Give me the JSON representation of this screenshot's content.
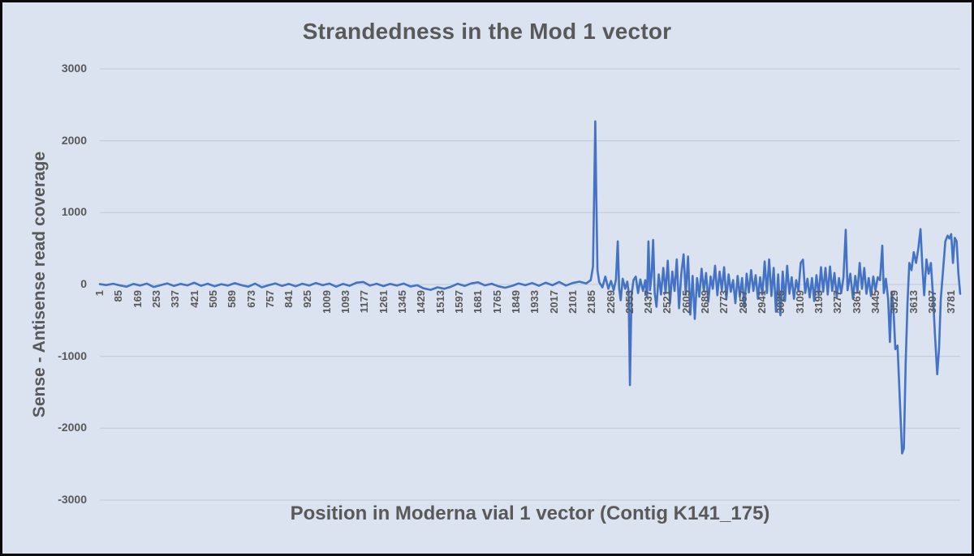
{
  "chart": {
    "title": "Strandedness in the Mod 1 vector",
    "colors": {
      "background": "#dbe2f0",
      "line": "#4472C4",
      "gridline": "#c7cfdf",
      "text": "#595959",
      "border": "#0a0a0a"
    }
  },
  "chart_data": {
    "type": "line",
    "title": "Strandedness in the Mod 1 vector",
    "xlabel": "Position in Moderna vial 1 vector (Contig K141_175)",
    "ylabel": "Sense - Antisense read coverage",
    "ylim": [
      -3000,
      3000
    ],
    "y_ticks": [
      3000,
      2000,
      1000,
      0,
      -1000,
      -2000,
      -3000
    ],
    "x_range": [
      1,
      3820
    ],
    "x_tick_labels": [
      1,
      85,
      169,
      253,
      337,
      421,
      505,
      589,
      673,
      757,
      841,
      925,
      1009,
      1093,
      1177,
      1261,
      1345,
      1429,
      1513,
      1597,
      1681,
      1765,
      1849,
      1933,
      2017,
      2101,
      2185,
      2269,
      2353,
      2437,
      2521,
      2605,
      2689,
      2773,
      2857,
      2941,
      3025,
      3109,
      3193,
      3277,
      3361,
      3445,
      3529,
      3613,
      3697,
      3781
    ],
    "grid": true,
    "legend": "none",
    "series_name": "Sense - Antisense read coverage",
    "points": [
      [
        1,
        5
      ],
      [
        30,
        -8
      ],
      [
        60,
        10
      ],
      [
        90,
        -12
      ],
      [
        120,
        -30
      ],
      [
        150,
        8
      ],
      [
        180,
        -15
      ],
      [
        210,
        12
      ],
      [
        240,
        -35
      ],
      [
        270,
        -10
      ],
      [
        300,
        15
      ],
      [
        330,
        -20
      ],
      [
        360,
        8
      ],
      [
        390,
        -12
      ],
      [
        420,
        25
      ],
      [
        450,
        -18
      ],
      [
        480,
        10
      ],
      [
        510,
        -25
      ],
      [
        540,
        5
      ],
      [
        570,
        -15
      ],
      [
        600,
        18
      ],
      [
        630,
        -10
      ],
      [
        660,
        -30
      ],
      [
        690,
        12
      ],
      [
        720,
        -40
      ],
      [
        750,
        -10
      ],
      [
        780,
        15
      ],
      [
        810,
        -20
      ],
      [
        840,
        8
      ],
      [
        870,
        -25
      ],
      [
        900,
        10
      ],
      [
        930,
        -15
      ],
      [
        960,
        20
      ],
      [
        990,
        -10
      ],
      [
        1020,
        12
      ],
      [
        1050,
        -30
      ],
      [
        1080,
        8
      ],
      [
        1110,
        -18
      ],
      [
        1140,
        25
      ],
      [
        1170,
        35
      ],
      [
        1200,
        -15
      ],
      [
        1230,
        10
      ],
      [
        1260,
        -22
      ],
      [
        1290,
        8
      ],
      [
        1320,
        -15
      ],
      [
        1350,
        12
      ],
      [
        1380,
        -28
      ],
      [
        1410,
        -10
      ],
      [
        1440,
        -55
      ],
      [
        1470,
        -75
      ],
      [
        1500,
        -40
      ],
      [
        1530,
        -60
      ],
      [
        1560,
        -30
      ],
      [
        1590,
        10
      ],
      [
        1620,
        -20
      ],
      [
        1650,
        15
      ],
      [
        1680,
        30
      ],
      [
        1710,
        -12
      ],
      [
        1740,
        10
      ],
      [
        1770,
        -25
      ],
      [
        1800,
        -45
      ],
      [
        1830,
        -20
      ],
      [
        1860,
        15
      ],
      [
        1890,
        -10
      ],
      [
        1920,
        20
      ],
      [
        1950,
        -18
      ],
      [
        1980,
        25
      ],
      [
        2010,
        -10
      ],
      [
        2040,
        35
      ],
      [
        2070,
        -15
      ],
      [
        2100,
        20
      ],
      [
        2130,
        40
      ],
      [
        2160,
        15
      ],
      [
        2180,
        60
      ],
      [
        2190,
        250
      ],
      [
        2196,
        1400
      ],
      [
        2200,
        2270
      ],
      [
        2205,
        1200
      ],
      [
        2210,
        200
      ],
      [
        2218,
        30
      ],
      [
        2232,
        -40
      ],
      [
        2245,
        110
      ],
      [
        2258,
        -60
      ],
      [
        2270,
        50
      ],
      [
        2282,
        -80
      ],
      [
        2292,
        70
      ],
      [
        2300,
        600
      ],
      [
        2306,
        -50
      ],
      [
        2313,
        -220
      ],
      [
        2322,
        80
      ],
      [
        2333,
        -60
      ],
      [
        2342,
        40
      ],
      [
        2348,
        -90
      ],
      [
        2354,
        -1400
      ],
      [
        2361,
        -150
      ],
      [
        2370,
        60
      ],
      [
        2380,
        110
      ],
      [
        2390,
        -120
      ],
      [
        2400,
        70
      ],
      [
        2412,
        -90
      ],
      [
        2422,
        60
      ],
      [
        2430,
        -180
      ],
      [
        2436,
        600
      ],
      [
        2443,
        -80
      ],
      [
        2450,
        120
      ],
      [
        2457,
        620
      ],
      [
        2464,
        -120
      ],
      [
        2472,
        -310
      ],
      [
        2482,
        140
      ],
      [
        2492,
        -140
      ],
      [
        2502,
        230
      ],
      [
        2512,
        -120
      ],
      [
        2522,
        330
      ],
      [
        2532,
        -260
      ],
      [
        2542,
        180
      ],
      [
        2552,
        -90
      ],
      [
        2562,
        350
      ],
      [
        2572,
        -330
      ],
      [
        2582,
        150
      ],
      [
        2592,
        420
      ],
      [
        2602,
        -140
      ],
      [
        2612,
        390
      ],
      [
        2622,
        -420
      ],
      [
        2632,
        120
      ],
      [
        2642,
        -480
      ],
      [
        2652,
        90
      ],
      [
        2662,
        -170
      ],
      [
        2672,
        220
      ],
      [
        2682,
        -90
      ],
      [
        2692,
        160
      ],
      [
        2702,
        -240
      ],
      [
        2712,
        110
      ],
      [
        2722,
        -60
      ],
      [
        2732,
        260
      ],
      [
        2742,
        -150
      ],
      [
        2752,
        180
      ],
      [
        2762,
        -80
      ],
      [
        2772,
        240
      ],
      [
        2782,
        -200
      ],
      [
        2792,
        140
      ],
      [
        2802,
        -100
      ],
      [
        2812,
        60
      ],
      [
        2822,
        -260
      ],
      [
        2832,
        120
      ],
      [
        2842,
        -170
      ],
      [
        2852,
        90
      ],
      [
        2862,
        -320
      ],
      [
        2872,
        150
      ],
      [
        2882,
        -110
      ],
      [
        2892,
        200
      ],
      [
        2902,
        -90
      ],
      [
        2912,
        130
      ],
      [
        2922,
        -200
      ],
      [
        2932,
        100
      ],
      [
        2942,
        -140
      ],
      [
        2952,
        320
      ],
      [
        2962,
        -120
      ],
      [
        2972,
        350
      ],
      [
        2982,
        -160
      ],
      [
        2992,
        230
      ],
      [
        3002,
        -380
      ],
      [
        3012,
        140
      ],
      [
        3022,
        -430
      ],
      [
        3032,
        180
      ],
      [
        3042,
        -230
      ],
      [
        3052,
        260
      ],
      [
        3062,
        -130
      ],
      [
        3072,
        100
      ],
      [
        3082,
        -200
      ],
      [
        3092,
        60
      ],
      [
        3102,
        -90
      ],
      [
        3112,
        300
      ],
      [
        3122,
        345
      ],
      [
        3132,
        -120
      ],
      [
        3142,
        80
      ],
      [
        3152,
        -180
      ],
      [
        3162,
        90
      ],
      [
        3172,
        -230
      ],
      [
        3182,
        130
      ],
      [
        3192,
        -150
      ],
      [
        3202,
        240
      ],
      [
        3212,
        -100
      ],
      [
        3222,
        230
      ],
      [
        3232,
        -140
      ],
      [
        3242,
        250
      ],
      [
        3252,
        -90
      ],
      [
        3262,
        160
      ],
      [
        3272,
        -180
      ],
      [
        3282,
        90
      ],
      [
        3292,
        -120
      ],
      [
        3302,
        100
      ],
      [
        3312,
        760
      ],
      [
        3320,
        -80
      ],
      [
        3332,
        150
      ],
      [
        3344,
        -200
      ],
      [
        3354,
        120
      ],
      [
        3364,
        -100
      ],
      [
        3374,
        300
      ],
      [
        3384,
        -60
      ],
      [
        3394,
        230
      ],
      [
        3404,
        -130
      ],
      [
        3414,
        90
      ],
      [
        3424,
        -160
      ],
      [
        3434,
        110
      ],
      [
        3444,
        -80
      ],
      [
        3454,
        100
      ],
      [
        3464,
        60
      ],
      [
        3474,
        540
      ],
      [
        3481,
        -120
      ],
      [
        3490,
        80
      ],
      [
        3500,
        -200
      ],
      [
        3508,
        -800
      ],
      [
        3516,
        -100
      ],
      [
        3524,
        -350
      ],
      [
        3532,
        -900
      ],
      [
        3542,
        -850
      ],
      [
        3552,
        -1600
      ],
      [
        3562,
        -2350
      ],
      [
        3570,
        -2280
      ],
      [
        3578,
        -1100
      ],
      [
        3586,
        -250
      ],
      [
        3594,
        300
      ],
      [
        3604,
        200
      ],
      [
        3614,
        450
      ],
      [
        3624,
        300
      ],
      [
        3634,
        500
      ],
      [
        3644,
        770
      ],
      [
        3652,
        250
      ],
      [
        3660,
        -150
      ],
      [
        3670,
        350
      ],
      [
        3680,
        150
      ],
      [
        3690,
        300
      ],
      [
        3700,
        -200
      ],
      [
        3708,
        -700
      ],
      [
        3718,
        -1250
      ],
      [
        3726,
        -900
      ],
      [
        3734,
        -200
      ],
      [
        3744,
        200
      ],
      [
        3754,
        600
      ],
      [
        3764,
        680
      ],
      [
        3772,
        640
      ],
      [
        3780,
        700
      ],
      [
        3788,
        300
      ],
      [
        3796,
        650
      ],
      [
        3804,
        600
      ],
      [
        3812,
        150
      ],
      [
        3820,
        -130
      ]
    ]
  }
}
